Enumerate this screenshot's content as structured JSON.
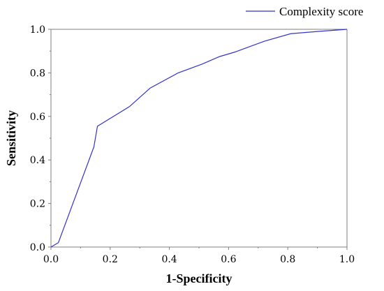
{
  "chart_data": {
    "type": "line",
    "title": "",
    "xlabel": "1-Specificity",
    "ylabel": "Sensitivity",
    "xlim": [
      0.0,
      1.0
    ],
    "ylim": [
      0.0,
      1.0
    ],
    "x_ticks": [
      "0.0",
      "0.2",
      "0.4",
      "0.6",
      "0.8",
      "1.0"
    ],
    "y_ticks": [
      "0.0",
      "0.2",
      "0.4",
      "0.6",
      "0.8",
      "1.0"
    ],
    "grid": false,
    "legend_position": "top-right",
    "series": [
      {
        "name": "Complexity score",
        "color": "#3333cc",
        "x": [
          0.0,
          0.025,
          0.145,
          0.157,
          0.265,
          0.335,
          0.43,
          0.51,
          0.57,
          0.62,
          0.72,
          0.81,
          0.9,
          1.0
        ],
        "y": [
          0.0,
          0.02,
          0.46,
          0.555,
          0.645,
          0.73,
          0.8,
          0.84,
          0.875,
          0.895,
          0.945,
          0.98,
          0.99,
          1.0
        ]
      }
    ]
  }
}
